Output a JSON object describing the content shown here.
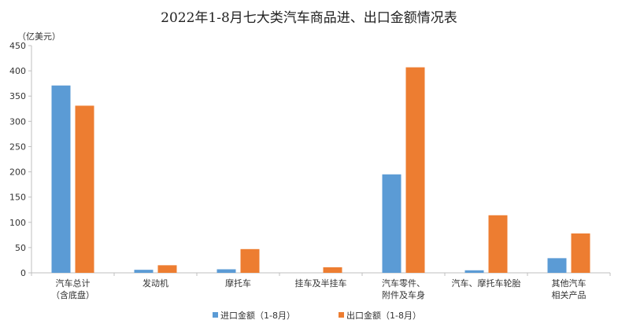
{
  "chart_data": {
    "type": "bar",
    "title": "2022年1-8月七大类汽车商品进、出口金额情况表",
    "unit": "（亿美元）",
    "xlabel": "",
    "ylabel": "",
    "ylim": [
      0,
      450
    ],
    "yticks": [
      0,
      50,
      100,
      150,
      200,
      250,
      300,
      350,
      400,
      450
    ],
    "grid": false,
    "legend": "bottom",
    "categories": [
      [
        "汽车总计",
        "（含底盘）"
      ],
      [
        "发动机"
      ],
      [
        "摩托车"
      ],
      [
        "挂车及半挂车"
      ],
      [
        "汽车零件、",
        "附件及车身"
      ],
      [
        "汽车、摩托车轮胎"
      ],
      [
        "其他汽车",
        "相关产品"
      ]
    ],
    "series": [
      {
        "name": "进口金额（1-8月）",
        "color": "#5b9bd5",
        "values": [
          371,
          6,
          7,
          0,
          195,
          5,
          29
        ]
      },
      {
        "name": "出口金额（1-8月）",
        "color": "#ed7d31",
        "values": [
          331,
          15,
          47,
          11,
          407,
          114,
          78
        ]
      }
    ]
  }
}
